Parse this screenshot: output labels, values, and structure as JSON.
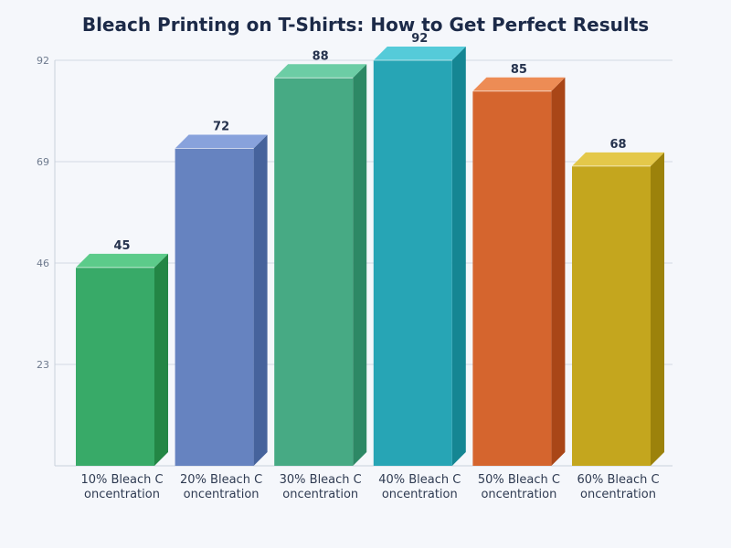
{
  "chart_data": {
    "type": "bar",
    "title": "Bleach Printing on T-Shirts: How to Get Perfect Results",
    "xlabel": "",
    "ylabel": "",
    "categories": [
      [
        "10% Bleach C",
        "oncentration"
      ],
      [
        "20% Bleach C",
        "oncentration"
      ],
      [
        "30% Bleach C",
        "oncentration"
      ],
      [
        "40% Bleach C",
        "oncentration"
      ],
      [
        "50% Bleach C",
        "oncentration"
      ],
      [
        "60% Bleach C",
        "oncentration"
      ]
    ],
    "values": [
      45,
      72,
      88,
      92,
      85,
      68
    ],
    "value_labels": [
      "45",
      "72",
      "88",
      "92",
      "85",
      "68"
    ],
    "ylim": [
      0,
      92
    ],
    "yticks": [
      23,
      46,
      69,
      92
    ],
    "ytick_labels": [
      "23",
      "46",
      "69",
      "92"
    ],
    "grid": true,
    "legend": "none",
    "style": "3d-bar",
    "colors": [
      {
        "front": "#38aa68",
        "top": "#5ccb8a",
        "side": "#238645"
      },
      {
        "front": "#6683c0",
        "top": "#88a2dc",
        "side": "#46639c"
      },
      {
        "front": "#47aa84",
        "top": "#6ccda5",
        "side": "#2d8865"
      },
      {
        "front": "#27a5b5",
        "top": "#55cbd9",
        "side": "#158693"
      },
      {
        "front": "#d5652e",
        "top": "#ed8c55",
        "side": "#a94617"
      },
      {
        "front": "#c4a61e",
        "top": "#e4c84a",
        "side": "#9c820b"
      }
    ]
  }
}
